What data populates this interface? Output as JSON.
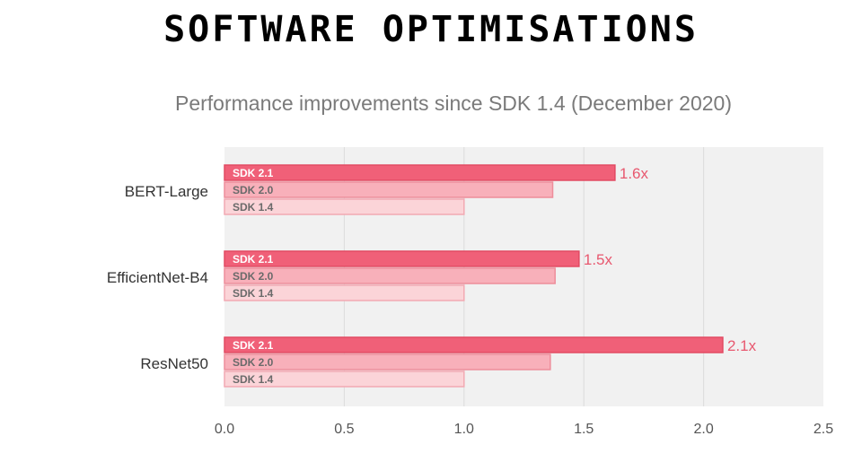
{
  "page": {
    "title": "SOFTWARE OPTIMISATIONS"
  },
  "chart_data": {
    "type": "bar",
    "orientation": "horizontal",
    "title": "Performance improvements since SDK 1.4 (December 2020)",
    "xlabel": "",
    "ylabel": "",
    "xlim": [
      0,
      2.5
    ],
    "xticks": [
      "0.0",
      "0.5",
      "1.0",
      "1.5",
      "2.0",
      "2.5"
    ],
    "grid": true,
    "legend": "none",
    "categories": [
      "BERT-Large",
      "EfficientNet-B4",
      "ResNet50"
    ],
    "series": [
      {
        "name": "SDK 2.1",
        "values": [
          1.63,
          1.48,
          2.08
        ],
        "labels": [
          "1.6x",
          "1.5x",
          "2.1x"
        ],
        "color": "#f06078"
      },
      {
        "name": "SDK 2.0",
        "values": [
          1.37,
          1.38,
          1.36
        ],
        "labels": [
          "",
          "",
          ""
        ],
        "color": "#f8b0ba"
      },
      {
        "name": "SDK 1.4",
        "values": [
          1.0,
          1.0,
          1.0
        ],
        "labels": [
          "",
          "",
          ""
        ],
        "color": "#fbd4d8"
      }
    ],
    "colors": {
      "plot_background": "#f1f1f1",
      "gridline": "#dcdcdc",
      "value_label": "#e8586f"
    }
  }
}
